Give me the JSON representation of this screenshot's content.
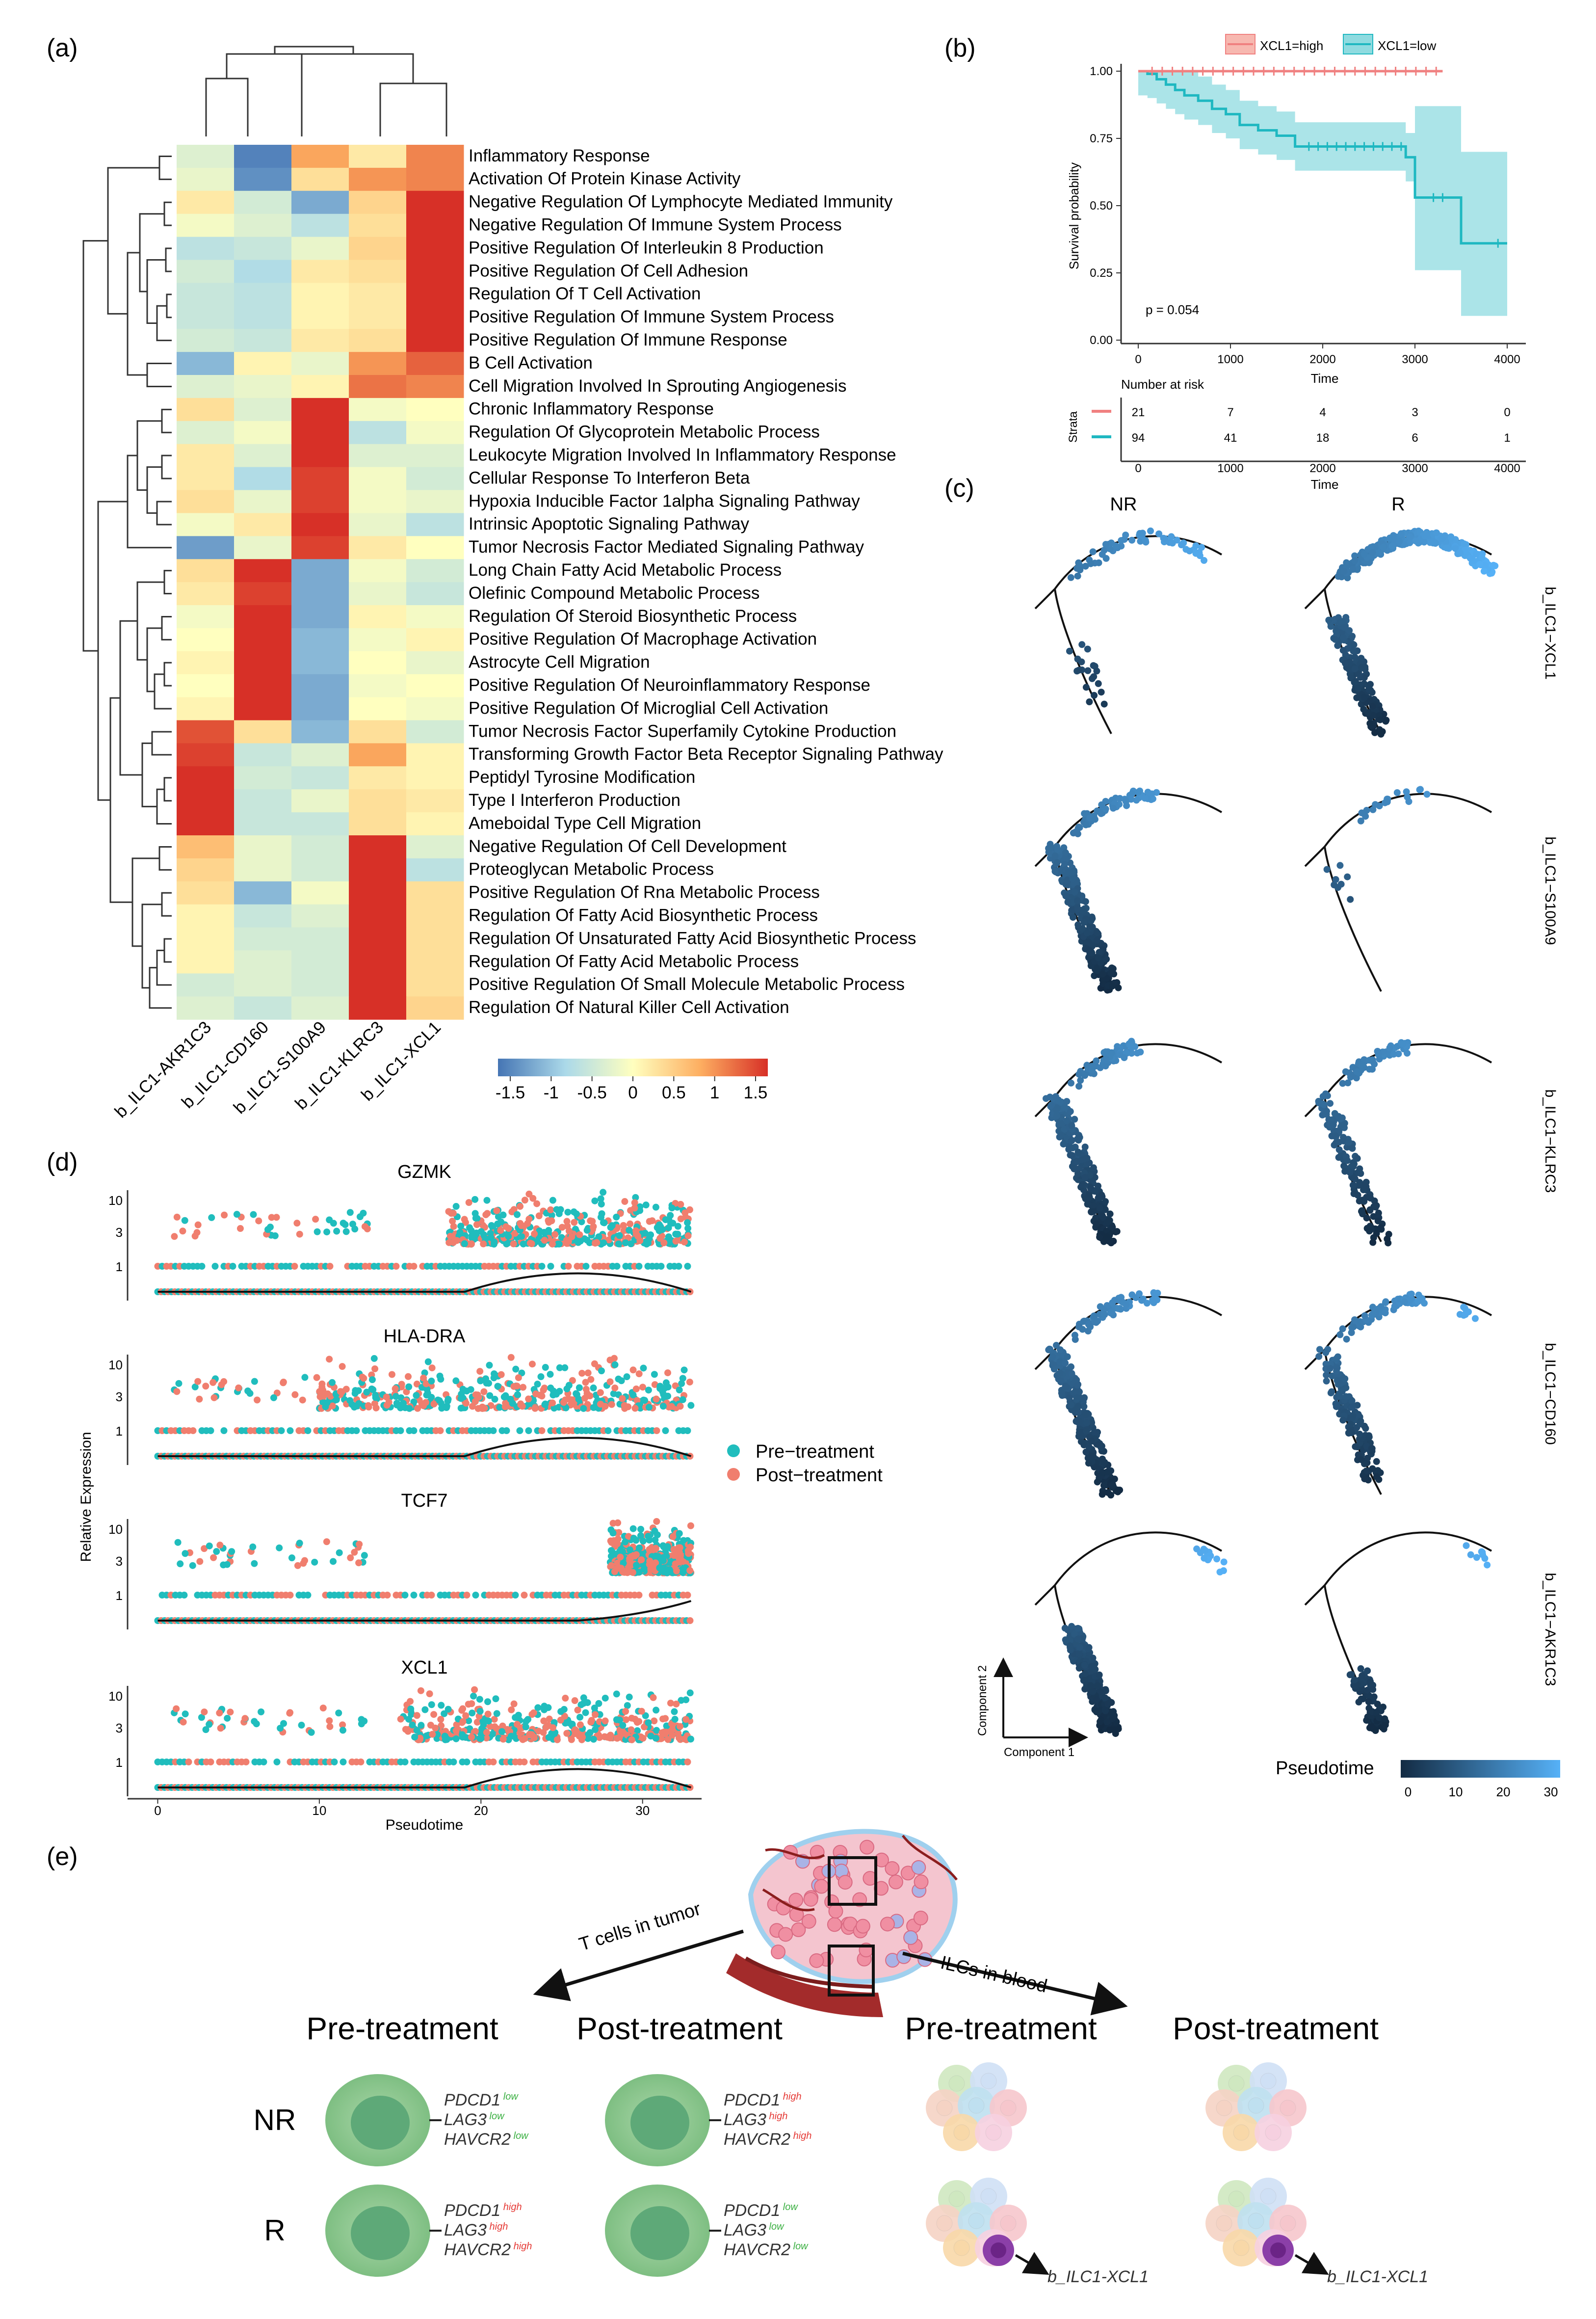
{
  "panels": {
    "a": "(a)",
    "b": "(b)",
    "c": "(c)",
    "d": "(d)",
    "e": "(e)"
  },
  "heatmap": {
    "columns": [
      "b_ILC1-AKR1C3",
      "b_ILC1-CD160",
      "b_ILC1-S100A9",
      "b_ILC1-KLRC3",
      "b_ILC1-XCL1"
    ],
    "rows": [
      "Inflammatory Response",
      "Activation Of Protein Kinase Activity",
      "Negative Regulation Of Lymphocyte Mediated Immunity",
      "Negative Regulation Of Immune System Process",
      "Positive Regulation Of Interleukin 8 Production",
      "Positive Regulation Of Cell Adhesion",
      "Regulation Of T Cell Activation",
      "Positive Regulation Of Immune System Process",
      "Positive Regulation Of Immune Response",
      "B Cell Activation",
      "Cell Migration Involved In Sprouting Angiogenesis",
      "Chronic Inflammatory Response",
      "Regulation Of Glycoprotein Metabolic Process",
      "Leukocyte Migration Involved In Inflammatory Response",
      "Cellular Response To Interferon Beta",
      "Hypoxia Inducible Factor 1alpha Signaling Pathway",
      "Intrinsic Apoptotic Signaling Pathway",
      "Tumor Necrosis Factor Mediated Signaling Pathway",
      "Long Chain Fatty Acid Metabolic Process",
      "Olefinic Compound Metabolic Process",
      "Regulation Of Steroid Biosynthetic Process",
      "Positive Regulation Of Macrophage Activation",
      "Astrocyte Cell Migration",
      "Positive Regulation Of Neuroinflammatory Response",
      "Positive Regulation Of Microglial Cell Activation",
      "Tumor Necrosis Factor Superfamily Cytokine Production",
      "Transforming Growth Factor Beta Receptor Signaling Pathway",
      "Peptidyl Tyrosine Modification",
      "Type I Interferon Production",
      "Ameboidal Type Cell Migration",
      "Negative Regulation Of Cell Development",
      "Proteoglycan Metabolic Process",
      "Positive Regulation Of Rna Metabolic Process",
      "Regulation Of Fatty Acid Biosynthetic Process",
      "Regulation Of Unsaturated Fatty Acid Biosynthetic Process",
      "Regulation Of Fatty Acid Metabolic Process",
      "Positive Regulation Of Small Molecule Metabolic Process",
      "Regulation Of Natural Killer Cell Activation"
    ],
    "values": [
      [
        -0.3,
        -1.4,
        0.8,
        0.2,
        1.0
      ],
      [
        -0.2,
        -1.3,
        0.3,
        0.9,
        1.0
      ],
      [
        0.2,
        -0.4,
        -1.1,
        0.4,
        1.5
      ],
      [
        -0.1,
        -0.3,
        -0.6,
        0.3,
        1.5
      ],
      [
        -0.6,
        -0.5,
        -0.2,
        0.4,
        1.5
      ],
      [
        -0.4,
        -0.7,
        0.2,
        0.3,
        1.5
      ],
      [
        -0.5,
        -0.6,
        0.1,
        0.2,
        1.5
      ],
      [
        -0.5,
        -0.6,
        0.1,
        0.2,
        1.5
      ],
      [
        -0.4,
        -0.5,
        0.2,
        0.3,
        1.5
      ],
      [
        -1.0,
        0.1,
        -0.2,
        0.9,
        1.2
      ],
      [
        -0.3,
        -0.2,
        0.1,
        1.1,
        1.0
      ],
      [
        0.3,
        -0.3,
        1.5,
        -0.1,
        0.0
      ],
      [
        -0.3,
        -0.1,
        1.6,
        -0.6,
        -0.1
      ],
      [
        0.2,
        -0.3,
        1.5,
        -0.3,
        -0.3
      ],
      [
        0.2,
        -0.7,
        1.4,
        -0.1,
        -0.4
      ],
      [
        0.3,
        -0.2,
        1.4,
        -0.1,
        -0.2
      ],
      [
        -0.1,
        0.2,
        1.7,
        -0.2,
        -0.6
      ],
      [
        -1.2,
        -0.2,
        1.4,
        0.2,
        0.0
      ],
      [
        0.3,
        1.5,
        -1.1,
        -0.1,
        -0.4
      ],
      [
        0.2,
        1.4,
        -1.1,
        -0.2,
        -0.5
      ],
      [
        -0.1,
        1.5,
        -1.1,
        0.1,
        -0.1
      ],
      [
        0.0,
        1.5,
        -1.0,
        -0.1,
        0.1
      ],
      [
        0.1,
        1.5,
        -1.0,
        0.0,
        -0.2
      ],
      [
        0.0,
        1.6,
        -1.1,
        -0.1,
        0.0
      ],
      [
        0.1,
        1.5,
        -1.1,
        0.0,
        -0.1
      ],
      [
        1.3,
        0.3,
        -1.0,
        0.3,
        -0.4
      ],
      [
        1.4,
        -0.5,
        -0.3,
        0.8,
        0.1
      ],
      [
        1.5,
        -0.4,
        -0.5,
        0.2,
        0.1
      ],
      [
        1.5,
        -0.5,
        -0.2,
        0.3,
        0.2
      ],
      [
        1.6,
        -0.5,
        -0.5,
        0.3,
        0.1
      ],
      [
        0.6,
        -0.2,
        -0.4,
        1.6,
        -0.3
      ],
      [
        0.4,
        -0.2,
        -0.4,
        1.5,
        -0.6
      ],
      [
        0.3,
        -1.0,
        -0.1,
        1.5,
        0.3
      ],
      [
        0.1,
        -0.5,
        -0.3,
        1.5,
        0.3
      ],
      [
        0.1,
        -0.4,
        -0.4,
        1.5,
        0.3
      ],
      [
        0.1,
        -0.3,
        -0.4,
        1.6,
        0.3
      ],
      [
        -0.4,
        -0.3,
        -0.4,
        1.5,
        0.3
      ],
      [
        -0.3,
        -0.5,
        -0.3,
        1.5,
        0.4
      ]
    ],
    "legend_ticks": [
      "-1.5",
      "-1",
      "-0.5",
      "0",
      "0.5",
      "1",
      "1.5"
    ]
  },
  "survival": {
    "legend": [
      "XCL1=high",
      "XCL1=low"
    ],
    "colors": {
      "high": "#f08080",
      "low": "#1fb8c1",
      "ci": "#7fd6dc"
    },
    "ylabel": "Survival probability",
    "yticks": [
      "0.00",
      "0.25",
      "0.50",
      "0.75",
      "1.00"
    ],
    "xticks": [
      "0",
      "1000",
      "2000",
      "3000",
      "4000"
    ],
    "xlabel": "Time",
    "pvalue": "p = 0.054",
    "risk_title": "Number at risk",
    "strata_label": "Strata",
    "risk_high": [
      "21",
      "7",
      "4",
      "3",
      "0"
    ],
    "risk_low": [
      "94",
      "41",
      "18",
      "6",
      "1"
    ]
  },
  "trajectory": {
    "columns": [
      "NR",
      "R"
    ],
    "rows": [
      "b_ILC1−XCL1",
      "b_ILC1−S100A9",
      "b_ILC1−KLRC3",
      "b_ILC1−CD160",
      "b_ILC1−AKR1C3"
    ],
    "axis_x": "Component 1",
    "axis_y": "Component 2",
    "pseudotime_label": "Pseudotime",
    "pseudotime_ticks": [
      "0",
      "10",
      "20",
      "30"
    ]
  },
  "expression": {
    "genes": [
      "GZMK",
      "HLA-DRA",
      "TCF7",
      "XCL1"
    ],
    "yticks": [
      "10",
      "3",
      "1"
    ],
    "xticks": [
      "0",
      "10",
      "20",
      "30"
    ],
    "xlabel": "Pseudotime",
    "ylabel": "Relative Expression",
    "legend": [
      "Pre−treatment",
      "Post−treatment"
    ],
    "colors": {
      "pre": "#20bdbd",
      "post": "#f07e6e"
    }
  },
  "schematic": {
    "arrow_left": "T cells in tumor",
    "arrow_right": "ILCs in blood",
    "headers": [
      "Pre-treatment",
      "Post-treatment",
      "Pre-treatment",
      "Post-treatment"
    ],
    "rows": [
      "NR",
      "R"
    ],
    "markers": [
      "PDCD1",
      "LAG3",
      "HAVCR2"
    ],
    "low": "low",
    "high": "high",
    "cell_label": "b_ILC1-XCL1"
  }
}
